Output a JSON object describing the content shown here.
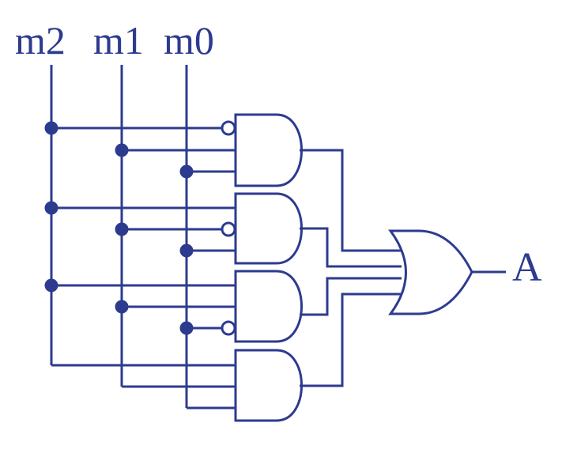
{
  "inputs": [
    {
      "id": "m2",
      "label": "m2"
    },
    {
      "id": "m1",
      "label": "m1"
    },
    {
      "id": "m0",
      "label": "m0"
    }
  ],
  "output": {
    "label": "A"
  },
  "colors": {
    "wire": "#2d3b8f",
    "background": "#ffffff"
  },
  "and_gates": [
    {
      "inverted_inputs": [
        "m2"
      ]
    },
    {
      "inverted_inputs": [
        "m0"
      ]
    },
    {
      "inverted_inputs": [
        "m0"
      ]
    },
    {
      "inverted_inputs": []
    }
  ],
  "or_gate": {
    "inputs": 4
  }
}
